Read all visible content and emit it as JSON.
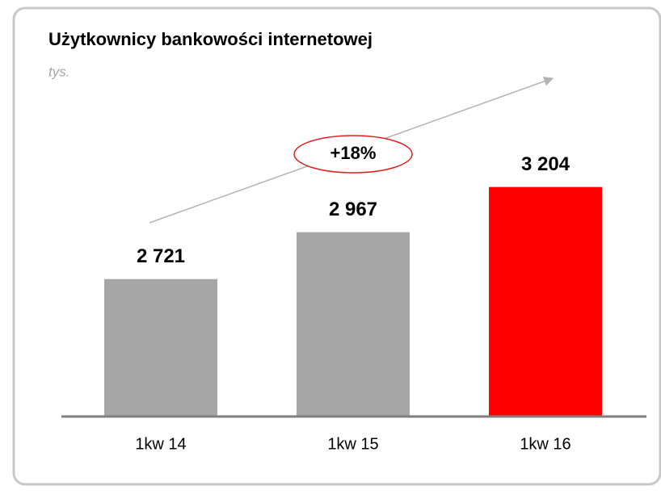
{
  "chart_data": {
    "type": "bar",
    "title": "Użytkownicy bankowości internetowej",
    "subtitle": "tys.",
    "categories": [
      "1kw 14",
      "1kw 15",
      "1kw 16"
    ],
    "values": [
      2721,
      2967,
      3204
    ],
    "value_labels": [
      "2 721",
      "2 967",
      "3 204"
    ],
    "colors": [
      "#a6a6a6",
      "#a6a6a6",
      "#ff0000"
    ],
    "ylim": [
      2000,
      3300
    ],
    "annotation": "+18%"
  }
}
